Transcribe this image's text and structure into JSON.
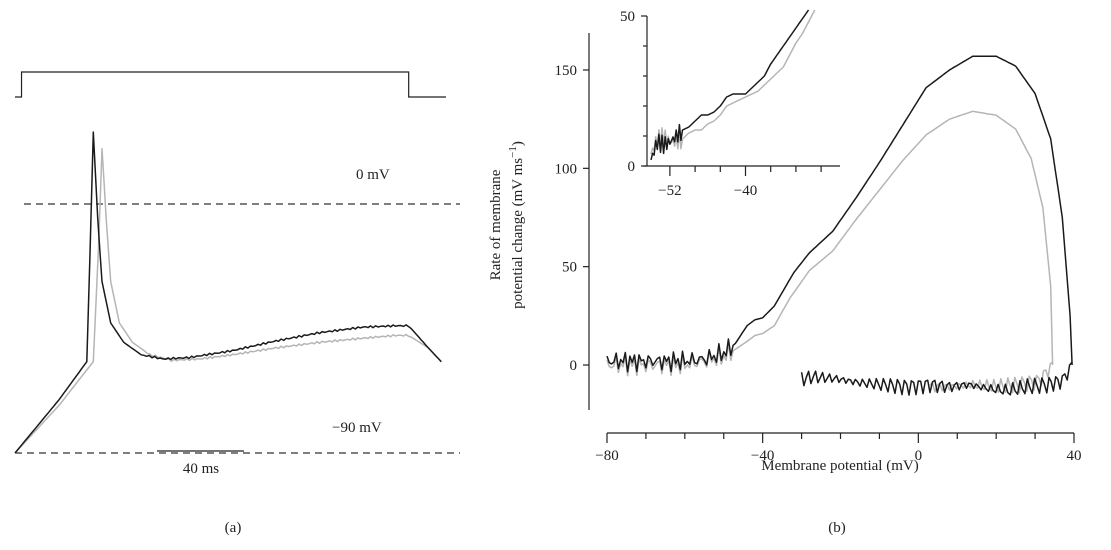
{
  "panel_a": {
    "caption": "(a)",
    "level_top_label": "0 mV",
    "level_bottom_label": "−90 mV",
    "scale_bar_label": "40 ms"
  },
  "panel_b": {
    "caption": "(b)",
    "ylabel_line1": "Rate of membrane",
    "ylabel_line2": "potential change (mV ms",
    "ylabel_sup": "−1",
    "ylabel_close": ")",
    "xlabel": "Membrane potential (mV)"
  },
  "chart_data": [
    {
      "panel": "a",
      "type": "line",
      "title": "",
      "xlabel": "",
      "ylabel": "",
      "xlim": [
        0,
        200
      ],
      "ylim": [
        -95,
        30
      ],
      "levels": [
        {
          "label": "0 mV",
          "value": 0
        },
        {
          "label": "−90 mV",
          "value": -90
        }
      ],
      "scale_bar": {
        "label": "40 ms",
        "length_ms": 40
      },
      "stimulus": {
        "on_ms": 3,
        "off_ms": 181
      },
      "series": [
        {
          "color": "#1a1a1a",
          "x": [
            0,
            20,
            33,
            34.5,
            36,
            38,
            40,
            44,
            50,
            58,
            68,
            80,
            100,
            120,
            140,
            160,
            175,
            181,
            190,
            196
          ],
          "y": [
            -90,
            -71,
            -57,
            -18,
            26,
            -5,
            -28,
            -43,
            -50,
            -54.5,
            -56,
            -55.5,
            -53,
            -49.5,
            -46.5,
            -44.5,
            -44,
            -44,
            -52,
            -57
          ]
        },
        {
          "color": "#b5b5b5",
          "x": [
            0,
            20,
            36,
            38.5,
            40,
            42,
            44,
            48,
            54,
            62,
            72,
            85,
            100,
            120,
            140,
            160,
            175,
            181,
            190,
            196
          ],
          "y": [
            -90,
            -73,
            -57,
            -14,
            20,
            -6,
            -28,
            -43,
            -50,
            -54.5,
            -56.5,
            -56,
            -54.5,
            -52,
            -50,
            -48.5,
            -47.5,
            -47.5,
            -52,
            -57
          ]
        }
      ]
    },
    {
      "panel": "b",
      "type": "line",
      "title": "",
      "xlabel": "Membrane potential (mV)",
      "ylabel": "Rate of membrane potential change (mV ms−1)",
      "xlim": [
        -80,
        40
      ],
      "ylim": [
        -20,
        170
      ],
      "x_ticks": [
        -80,
        -40,
        0,
        40
      ],
      "y_ticks": [
        0,
        50,
        100,
        150
      ],
      "series": [
        {
          "color": "#1a1a1a",
          "x": [
            -80,
            -70,
            -60,
            -55,
            -50,
            -47,
            -44,
            -42,
            -40,
            -37,
            -32,
            -28,
            -22,
            -16,
            -10,
            -4,
            2,
            8,
            14,
            20,
            25,
            30,
            34,
            37,
            39,
            39.5
          ],
          "y": [
            2,
            2,
            2,
            3,
            6,
            11,
            20,
            23,
            24,
            30,
            47,
            57,
            68,
            85,
            103,
            122,
            141,
            150,
            157,
            157,
            152,
            138,
            115,
            75,
            25,
            0
          ]
        },
        {
          "color": "#1a1a1a",
          "x": [
            39.5,
            37,
            33,
            28,
            23,
            18,
            13,
            8,
            3,
            -3,
            -9,
            -15,
            -21,
            -27,
            -30
          ],
          "y": [
            0,
            -8,
            -10,
            -11,
            -13,
            -12,
            -10,
            -11,
            -10,
            -11,
            -10,
            -9,
            -7,
            -6,
            -7
          ]
        },
        {
          "color": "#b5b5b5",
          "x": [
            -80,
            -70,
            -60,
            -55,
            -50,
            -47,
            -44,
            -42,
            -40,
            -37,
            -33,
            -28,
            -22,
            -16,
            -10,
            -4,
            2,
            8,
            14,
            20,
            25,
            29,
            32,
            34,
            34.5
          ],
          "y": [
            0,
            0,
            0,
            2,
            4,
            8,
            12,
            15,
            16,
            20,
            34,
            48,
            58,
            74,
            89,
            104,
            117,
            125,
            129,
            127,
            120,
            105,
            80,
            40,
            0
          ]
        },
        {
          "color": "#b5b5b5",
          "x": [
            34.5,
            31,
            26,
            20,
            14,
            8,
            3
          ],
          "y": [
            0,
            -8,
            -10,
            -11,
            -10,
            -11,
            -11
          ]
        }
      ],
      "inset": {
        "xlim": [
          -55,
          -25
        ],
        "ylim": [
          0,
          50
        ],
        "x_ticks": [
          -52,
          -40
        ],
        "y_ticks": [
          0,
          50
        ],
        "series": [
          {
            "color": "#1a1a1a",
            "x": [
              -55,
              -54,
              -53,
              -52,
              -51,
              -50,
              -49,
              -48,
              -47,
              -46,
              -45,
              -44,
              -43,
              -42,
              -41,
              -40,
              -39,
              -38,
              -37,
              -36,
              -35,
              -34,
              -33,
              -32,
              -31,
              -30
            ],
            "y": [
              2,
              8,
              7,
              8,
              10,
              12,
              13,
              15,
              17,
              17,
              18,
              20,
              23,
              24,
              24,
              24,
              26,
              28,
              30,
              34,
              37,
              40,
              43,
              46,
              49,
              52
            ]
          },
          {
            "color": "#b5b5b5",
            "x": [
              -55,
              -54,
              -53,
              -52,
              -51,
              -50,
              -49,
              -48,
              -47,
              -46,
              -45,
              -44,
              -43,
              -42,
              -41,
              -40,
              -39,
              -38,
              -37,
              -36,
              -35,
              -34,
              -33,
              -32,
              -31,
              -30,
              -29
            ],
            "y": [
              4,
              9,
              10,
              8,
              8,
              9,
              11,
              12,
              12,
              14,
              15,
              17,
              20,
              21,
              22,
              23,
              24,
              25,
              27,
              29,
              31,
              33,
              37,
              41,
              44,
              48,
              52
            ]
          }
        ]
      }
    }
  ]
}
